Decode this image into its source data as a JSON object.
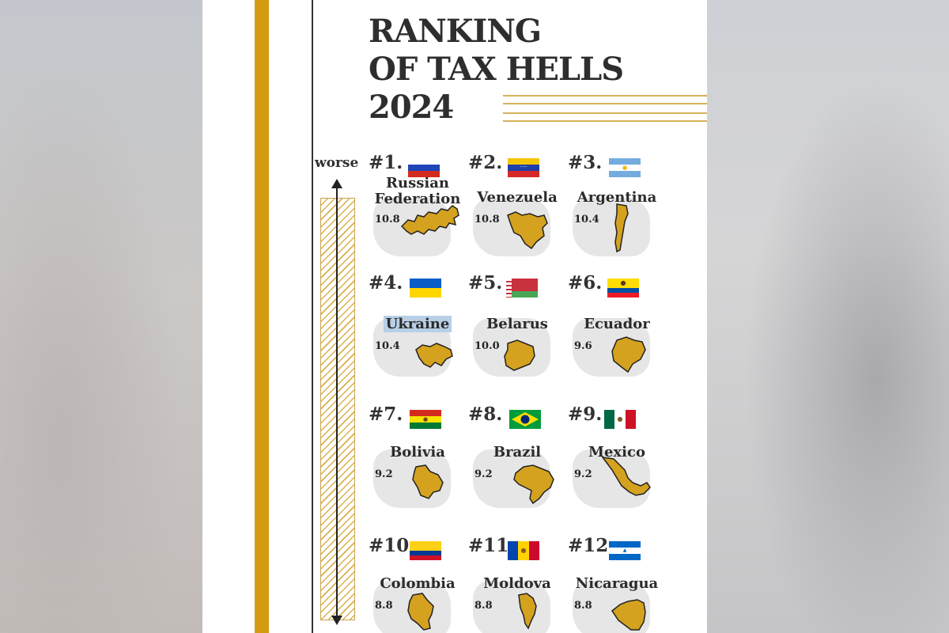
{
  "title": {
    "line1": "RANKING",
    "line2": "OF TAX HELLS",
    "line3": "2024"
  },
  "axis_label": "worse",
  "colors": {
    "accent_gold": "#d49b12",
    "map_gold": "#d4a21f",
    "text": "#2e2e2e"
  },
  "countries": [
    {
      "rank": "#1.",
      "name_line1": "Russian",
      "name_line2": "Federation",
      "score": "10.8",
      "flag": "russia-flag"
    },
    {
      "rank": "#2.",
      "name": "Venezuela",
      "score": "10.8",
      "flag": "venezuela-flag"
    },
    {
      "rank": "#3.",
      "name": "Argentina",
      "score": "10.4",
      "flag": "argentina-flag"
    },
    {
      "rank": "#4.",
      "name": "Ukraine",
      "score": "10.4",
      "flag": "ukraine-flag"
    },
    {
      "rank": "#5.",
      "name": "Belarus",
      "score": "10.0",
      "flag": "belarus-flag"
    },
    {
      "rank": "#6.",
      "name": "Ecuador",
      "score": "9.6",
      "flag": "ecuador-flag"
    },
    {
      "rank": "#7.",
      "name": "Bolivia",
      "score": "9.2",
      "flag": "bolivia-flag"
    },
    {
      "rank": "#8.",
      "name": "Brazil",
      "score": "9.2",
      "flag": "brazil-flag"
    },
    {
      "rank": "#9.",
      "name": "Mexico",
      "score": "9.2",
      "flag": "mexico-flag"
    },
    {
      "rank": "#10.",
      "name": "Colombia",
      "score": "8.8",
      "flag": "colombia-flag"
    },
    {
      "rank": "#11.",
      "name": "Moldova",
      "score": "8.8",
      "flag": "moldova-flag"
    },
    {
      "rank": "#12.",
      "name": "Nicaragua",
      "score": "8.8",
      "flag": "nicaragua-flag"
    }
  ]
}
